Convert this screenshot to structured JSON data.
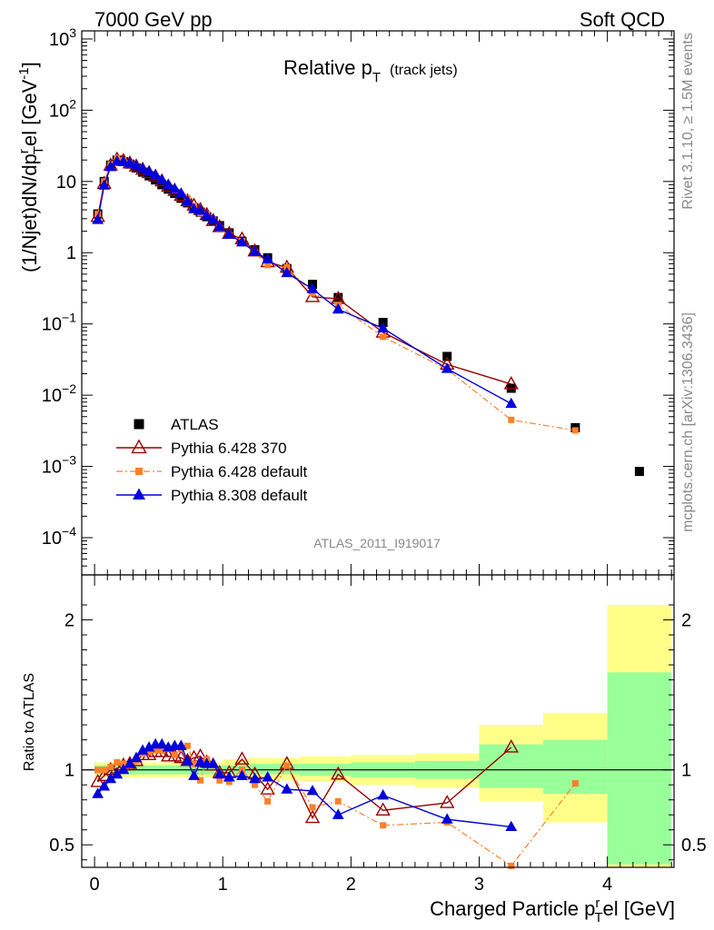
{
  "header": {
    "left": "7000 GeV pp",
    "right": "Soft QCD"
  },
  "side_labels": {
    "top": "Rivet 3.1.10, ≥ 1.5M events",
    "bottom": "mcplots.cern.ch [arXiv:1306.3436]"
  },
  "colors": {
    "atlas": "#000000",
    "p6_370": "#990000",
    "p6_default": "#ff7f2a",
    "p8_default": "#0000dd",
    "band_outer": "#ffff88",
    "band_inner": "#99ff99"
  },
  "chart_data": [
    {
      "type": "scatter",
      "title": "Relative p_T (track jets)",
      "title_main": "Relative p",
      "title_sub": "T",
      "title_extra": "(track jets)",
      "ylabel": "(1/Njet)dN/dp^r_T el [GeV^-1]",
      "ylabel_parts": {
        "a": "(1/Njet)dN/dp",
        "sup": "r",
        "sub": "T",
        "b": "el [GeV",
        "exp": "-1",
        "c": "]"
      },
      "yscale": "log",
      "ylim": [
        3e-05,
        1300
      ],
      "xlim": [
        -0.1,
        4.52
      ],
      "ytick_labels": [
        "10^3",
        "10^2",
        "10",
        "1",
        "10^-1",
        "10^-2",
        "10^-3",
        "10^-4"
      ],
      "watermark": "ATLAS_2011_I919017",
      "legend_position": "lower-left",
      "x": [
        0.025,
        0.075,
        0.125,
        0.175,
        0.225,
        0.275,
        0.325,
        0.375,
        0.425,
        0.475,
        0.525,
        0.575,
        0.625,
        0.675,
        0.725,
        0.775,
        0.825,
        0.875,
        0.925,
        0.975,
        1.05,
        1.15,
        1.25,
        1.35,
        1.5,
        1.7,
        1.9,
        2.25,
        2.75,
        3.25,
        3.75,
        4.25
      ],
      "series": [
        {
          "name": "ATLAS",
          "marker": "square",
          "values": [
            3.5,
            10.0,
            17.0,
            20.0,
            19.0,
            17.5,
            15.5,
            13.5,
            12.0,
            10.5,
            9.0,
            7.8,
            6.8,
            5.8,
            5.0,
            4.3,
            3.7,
            3.2,
            2.8,
            2.4,
            1.9,
            1.45,
            1.1,
            0.85,
            0.6,
            0.36,
            0.235,
            0.105,
            0.035,
            0.0125,
            0.0035,
            0.00085
          ]
        },
        {
          "name": "Pythia 6.428 370",
          "marker": "open-triangle",
          "values": [
            3.2,
            9.3,
            16.8,
            20.4,
            19.5,
            18.0,
            16.3,
            14.7,
            13.2,
            11.7,
            10.1,
            8.5,
            7.4,
            6.3,
            5.3,
            4.6,
            4.0,
            3.4,
            2.8,
            2.3,
            1.85,
            1.55,
            1.05,
            0.74,
            0.62,
            0.24,
            0.225,
            0.076,
            0.027,
            0.0143,
            null,
            null
          ]
        },
        {
          "name": "Pythia 6.428 default",
          "marker": "filled-square",
          "values": [
            3.5,
            10.0,
            17.4,
            21.0,
            19.8,
            18.0,
            16.4,
            15.0,
            13.4,
            11.9,
            10.2,
            8.9,
            7.5,
            6.6,
            5.8,
            4.5,
            3.6,
            3.4,
            2.9,
            2.2,
            1.75,
            1.45,
            1.0,
            0.67,
            0.62,
            0.27,
            0.185,
            0.066,
            0.023,
            0.0045,
            0.0032,
            null
          ]
        },
        {
          "name": "Pythia 8.308 default",
          "marker": "filled-triangle",
          "values": [
            2.9,
            8.8,
            16.0,
            19.2,
            19.0,
            18.2,
            16.8,
            15.3,
            13.8,
            12.4,
            10.5,
            9.0,
            7.9,
            6.8,
            5.3,
            4.1,
            3.9,
            3.3,
            2.9,
            2.3,
            1.8,
            1.4,
            1.03,
            0.81,
            0.52,
            0.31,
            0.16,
            0.087,
            0.0235,
            0.0076,
            null,
            null
          ]
        }
      ]
    },
    {
      "type": "scatter",
      "ylabel": "Ratio to ATLAS",
      "xlabel": "Charged Particle p^r_T el [GeV]",
      "xlabel_parts": {
        "a": "Charged Particle p",
        "sup": "r",
        "sub": "T",
        "b": "el [GeV]"
      },
      "xlim": [
        -0.1,
        4.52
      ],
      "ylim": [
        0.35,
        2.3
      ],
      "yticks": [
        0.5,
        1,
        2
      ],
      "ytick_labels": [
        "0.5",
        "1",
        "2"
      ],
      "xticks": [
        0,
        1,
        2,
        3,
        4
      ],
      "xtick_labels": [
        "0",
        "1",
        "2",
        "3",
        "4"
      ],
      "reference_line": 1,
      "bands": [
        {
          "x0": 0.0,
          "x1": 0.5,
          "inner": [
            0.97,
            1.03
          ],
          "outer": [
            0.95,
            1.05
          ]
        },
        {
          "x0": 0.5,
          "x1": 1.0,
          "inner": [
            0.97,
            1.03
          ],
          "outer": [
            0.95,
            1.05
          ]
        },
        {
          "x0": 1.0,
          "x1": 1.2,
          "inner": [
            0.97,
            1.03
          ],
          "outer": [
            0.95,
            1.07
          ]
        },
        {
          "x0": 1.2,
          "x1": 1.6,
          "inner": [
            0.97,
            1.04
          ],
          "outer": [
            0.93,
            1.08
          ]
        },
        {
          "x0": 1.6,
          "x1": 2.0,
          "inner": [
            0.96,
            1.04
          ],
          "outer": [
            0.92,
            1.09
          ]
        },
        {
          "x0": 2.0,
          "x1": 2.5,
          "inner": [
            0.95,
            1.05
          ],
          "outer": [
            0.9,
            1.1
          ]
        },
        {
          "x0": 2.5,
          "x1": 3.0,
          "inner": [
            0.94,
            1.06
          ],
          "outer": [
            0.88,
            1.11
          ]
        },
        {
          "x0": 3.0,
          "x1": 3.5,
          "inner": [
            0.88,
            1.17
          ],
          "outer": [
            0.79,
            1.3
          ]
        },
        {
          "x0": 3.5,
          "x1": 4.0,
          "inner": [
            0.84,
            1.2
          ],
          "outer": [
            0.65,
            1.38
          ]
        },
        {
          "x0": 4.0,
          "x1": 4.5,
          "inner": [
            0.37,
            1.65
          ],
          "outer": [
            0.35,
            2.1
          ]
        }
      ],
      "series": [
        {
          "name": "Pythia 6.428 370",
          "values": [
            0.92,
            0.96,
            1.0,
            1.01,
            1.03,
            1.04,
            1.06,
            1.1,
            1.1,
            1.12,
            1.12,
            1.09,
            1.09,
            1.08,
            1.06,
            1.08,
            1.09,
            1.05,
            1.03,
            0.98,
            0.98,
            1.07,
            0.97,
            0.87,
            1.04,
            0.68,
            0.97,
            0.73,
            0.78,
            1.15
          ]
        },
        {
          "name": "Pythia 6.428 default",
          "values": [
            1.0,
            1.0,
            1.02,
            1.05,
            1.04,
            1.03,
            1.06,
            1.11,
            1.12,
            1.13,
            1.13,
            1.14,
            1.1,
            1.14,
            1.16,
            1.04,
            0.93,
            1.07,
            1.03,
            0.93,
            0.92,
            1.0,
            0.9,
            0.79,
            1.03,
            0.75,
            0.79,
            0.63,
            0.65,
            0.36,
            0.91
          ]
        },
        {
          "name": "Pythia 8.308 default",
          "values": [
            0.84,
            0.89,
            0.94,
            0.97,
            1.0,
            1.04,
            1.08,
            1.13,
            1.15,
            1.17,
            1.17,
            1.15,
            1.16,
            1.16,
            1.06,
            0.96,
            1.05,
            1.04,
            1.04,
            0.97,
            0.95,
            0.96,
            0.94,
            0.95,
            0.87,
            0.86,
            0.7,
            0.83,
            0.67,
            0.62
          ]
        }
      ]
    }
  ]
}
